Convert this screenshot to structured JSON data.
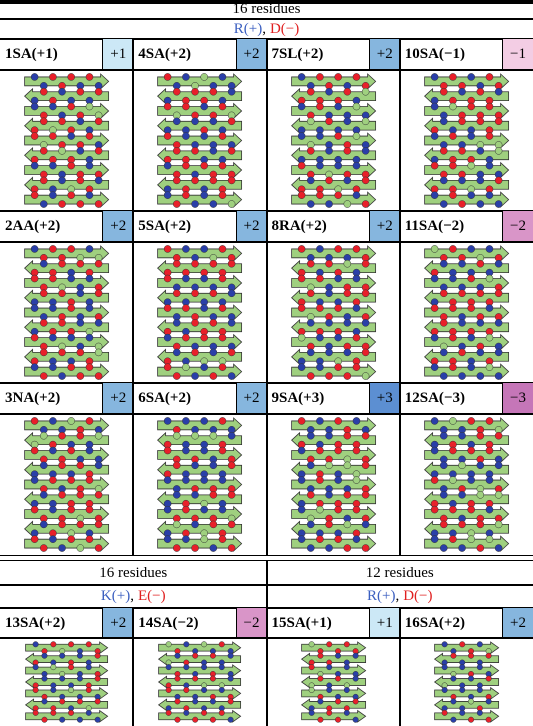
{
  "panels": [
    {
      "header": "16 residues",
      "positive": "R(+)",
      "separator": ",",
      "negative": "D(−)",
      "cells": [
        {
          "name": "1SA(+1)",
          "charge": "+1",
          "badge_color": "#cce8f6"
        },
        {
          "name": "4SA(+2)",
          "charge": "+2",
          "badge_color": "#86b6de"
        },
        {
          "name": "7SL(+2)",
          "charge": "+2",
          "badge_color": "#86b6de"
        },
        {
          "name": "10SA(−1)",
          "charge": "−1",
          "badge_color": "#f3cde4"
        },
        {
          "name": "2AA(+2)",
          "charge": "+2",
          "badge_color": "#86b6de"
        },
        {
          "name": "5SA(+2)",
          "charge": "+2",
          "badge_color": "#86b6de"
        },
        {
          "name": "8RA(+2)",
          "charge": "+2",
          "badge_color": "#86b6de"
        },
        {
          "name": "11SA(−2)",
          "charge": "−2",
          "badge_color": "#d995c8"
        },
        {
          "name": "3NA(+2)",
          "charge": "+2",
          "badge_color": "#86b6de"
        },
        {
          "name": "6SA(+2)",
          "charge": "+2",
          "badge_color": "#86b6de"
        },
        {
          "name": "9SA(+3)",
          "charge": "+3",
          "badge_color": "#5c8fd2"
        },
        {
          "name": "12SA(−3)",
          "charge": "−3",
          "badge_color": "#c576b8"
        }
      ]
    },
    {
      "header": "16 residues",
      "positive": "K(+)",
      "separator": ",",
      "negative": "E(−)",
      "cells": [
        {
          "name": "13SA(+2)",
          "charge": "+2",
          "badge_color": "#86b6de"
        },
        {
          "name": "14SA(−2)",
          "charge": "−2",
          "badge_color": "#d995c8"
        }
      ]
    },
    {
      "header": "12 residues",
      "positive": "R(+)",
      "separator": ",",
      "negative": "D(−)",
      "cells": [
        {
          "name": "15SA(+1)",
          "charge": "+1",
          "badge_color": "#cce8f6"
        },
        {
          "name": "16SA(+2)",
          "charge": "+2",
          "badge_color": "#86b6de"
        }
      ]
    }
  ]
}
